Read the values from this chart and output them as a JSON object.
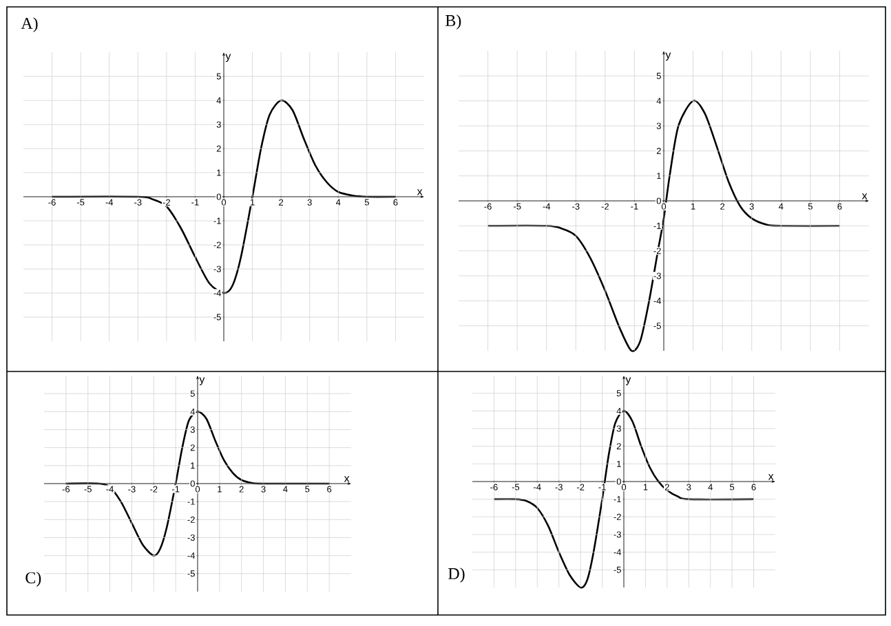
{
  "chart_data": [
    {
      "type": "line",
      "title": "A)",
      "xlabel": "x",
      "ylabel": "y",
      "xlim": [
        -7,
        7
      ],
      "ylim": [
        -6,
        6
      ],
      "xticks": [
        -6,
        -5,
        -4,
        -3,
        -2,
        -1,
        0,
        1,
        2,
        3,
        4,
        5,
        6
      ],
      "yticks": [
        -5,
        -4,
        -3,
        -2,
        -1,
        0,
        1,
        2,
        3,
        4,
        5
      ],
      "grid": true,
      "color": "#000000",
      "x": [
        -6,
        -3,
        -2.5,
        -2,
        -1.5,
        -1,
        -0.5,
        0,
        0.3,
        0.6,
        1,
        1.3,
        1.6,
        2,
        2.4,
        2.8,
        3.2,
        3.6,
        4,
        4.5,
        5,
        6
      ],
      "values": [
        0,
        0,
        -0.1,
        -0.4,
        -1.3,
        -2.5,
        -3.6,
        -4,
        -3.7,
        -2.5,
        0,
        2,
        3.4,
        4,
        3.6,
        2.4,
        1.3,
        0.6,
        0.2,
        0.05,
        0,
        0
      ]
    },
    {
      "type": "line",
      "title": "B)",
      "xlabel": "x",
      "ylabel": "y",
      "xlim": [
        -7,
        7
      ],
      "ylim": [
        -6,
        6
      ],
      "xticks": [
        -6,
        -5,
        -4,
        -3,
        -2,
        -1,
        0,
        1,
        2,
        3,
        4,
        5,
        6
      ],
      "yticks": [
        -5,
        -4,
        -3,
        -2,
        -1,
        0,
        1,
        2,
        3,
        4,
        5
      ],
      "grid": true,
      "color": "#000000",
      "x": [
        -6,
        -4,
        -3.5,
        -3,
        -2.5,
        -2,
        -1.5,
        -1.1,
        -0.8,
        -0.5,
        -0.2,
        0,
        0.2,
        0.5,
        1,
        1.4,
        1.8,
        2.2,
        2.6,
        3,
        3.5,
        4,
        6
      ],
      "values": [
        -1,
        -1,
        -1.1,
        -1.4,
        -2.3,
        -3.6,
        -5.1,
        -6,
        -5.6,
        -4,
        -2,
        -0.7,
        1,
        3,
        4,
        3.5,
        2.2,
        0.8,
        -0.2,
        -0.7,
        -0.95,
        -1,
        -1
      ]
    },
    {
      "type": "line",
      "title": "C)",
      "xlabel": "x",
      "ylabel": "y",
      "xlim": [
        -7,
        7
      ],
      "ylim": [
        -6,
        6
      ],
      "xticks": [
        -6,
        -5,
        -4,
        -3,
        -2,
        -1,
        0,
        1,
        2,
        3,
        4,
        5,
        6
      ],
      "yticks": [
        -5,
        -4,
        -3,
        -2,
        -1,
        0,
        1,
        2,
        3,
        4,
        5
      ],
      "grid": true,
      "color": "#000000",
      "x": [
        -6,
        -4.5,
        -4,
        -3.5,
        -3,
        -2.5,
        -2,
        -1.7,
        -1.4,
        -1,
        -0.7,
        -0.4,
        0,
        0.4,
        0.8,
        1.2,
        1.6,
        2,
        2.5,
        3,
        6
      ],
      "values": [
        0,
        0,
        -0.2,
        -1,
        -2.2,
        -3.4,
        -4,
        -3.6,
        -2.4,
        0,
        2,
        3.5,
        4,
        3.6,
        2.4,
        1.3,
        0.6,
        0.2,
        0.03,
        0,
        0
      ]
    },
    {
      "type": "line",
      "title": "D)",
      "xlabel": "x",
      "ylabel": "y",
      "xlim": [
        -7,
        7
      ],
      "ylim": [
        -6,
        6
      ],
      "xticks": [
        -6,
        -5,
        -4,
        -3,
        -2,
        -1,
        0,
        1,
        2,
        3,
        4,
        5,
        6
      ],
      "yticks": [
        -5,
        -4,
        -3,
        -2,
        -1,
        0,
        1,
        2,
        3,
        4,
        5
      ],
      "grid": true,
      "color": "#000000",
      "x": [
        -6,
        -5,
        -4.5,
        -4,
        -3.5,
        -3,
        -2.5,
        -2,
        -1.7,
        -1.4,
        -1,
        -0.7,
        -0.4,
        0,
        0.4,
        0.8,
        1.2,
        1.6,
        2,
        2.5,
        3,
        6
      ],
      "values": [
        -1,
        -1,
        -1.1,
        -1.5,
        -2.5,
        -4,
        -5.3,
        -6,
        -5.6,
        -4,
        -1,
        1.5,
        3.3,
        4,
        3.4,
        2,
        0.8,
        0,
        -0.5,
        -0.85,
        -1,
        -1
      ]
    }
  ]
}
